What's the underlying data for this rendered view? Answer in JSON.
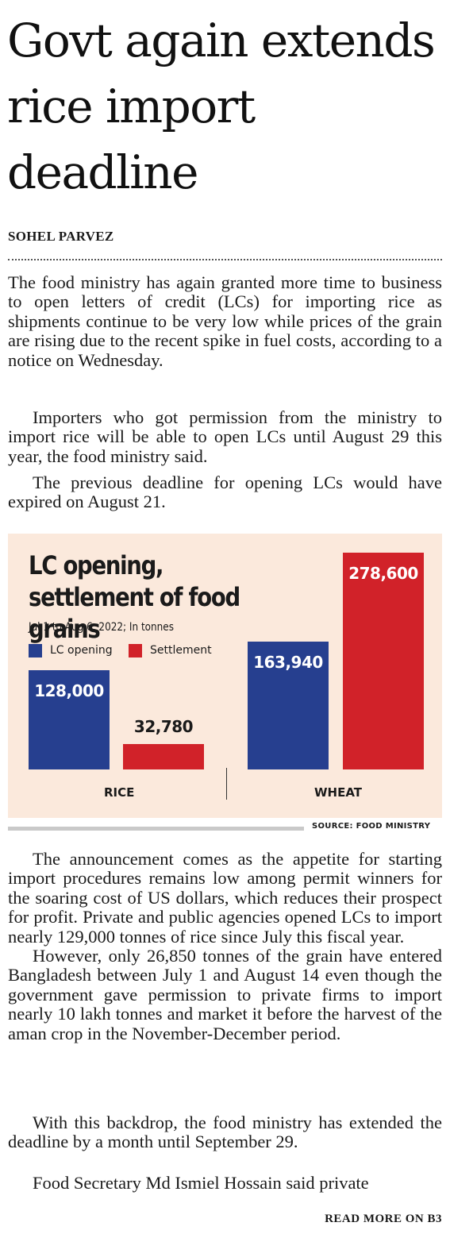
{
  "headline": "Govt again extends rice import deadline",
  "byline": "SOHEL PARVEZ",
  "paragraphs_top": [
    "The food ministry has again granted more time to business to open letters of credit (LCs) for importing rice as shipments continue to be very low while prices of the grain are rising due to the recent spike in fuel costs, according to a notice on Wednesday.",
    "Importers who got permission from the ministry to import rice will be able to open LCs until August 29 this year, the food ministry said.",
    "The previous deadline for opening LCs would have expired on August 21."
  ],
  "chart_data": {
    "type": "bar",
    "title": "LC opening, settlement of food grains",
    "subtitle": "Jul 1 to Aug 6, 2022; In tonnes",
    "categories": [
      "RICE",
      "WHEAT"
    ],
    "series": [
      {
        "name": "LC opening",
        "values": [
          128000,
          163940
        ],
        "labels": [
          "128,000",
          "163,940"
        ],
        "color": "#263f8f"
      },
      {
        "name": "Settlement",
        "values": [
          32780,
          278600
        ],
        "labels": [
          "32,780",
          "278,600"
        ],
        "color": "#d12229"
      }
    ],
    "ylim": [
      0,
      278600
    ],
    "grid": false,
    "legend": "top-left",
    "source": "SOURCE: FOOD MINISTRY"
  },
  "paragraphs_bottom": [
    "The announcement comes as the appetite for starting import procedures remains low among permit winners for the soaring cost of US dollars, which reduces their prospect for profit. Private and public agencies opened LCs to import nearly 129,000 tonnes of rice since July this fiscal year.",
    "However, only 26,850 tonnes of the grain have entered Bangladesh between July 1 and August 14 even though the government gave permission to private firms to import nearly 10 lakh tonnes and market it before the harvest of the aman crop in the November-December period.",
    "With this backdrop, the food ministry has extended the deadline by a month until September 29.",
    "Food Secretary Md Ismiel Hossain said private"
  ],
  "read_more": "READ MORE ON B3"
}
